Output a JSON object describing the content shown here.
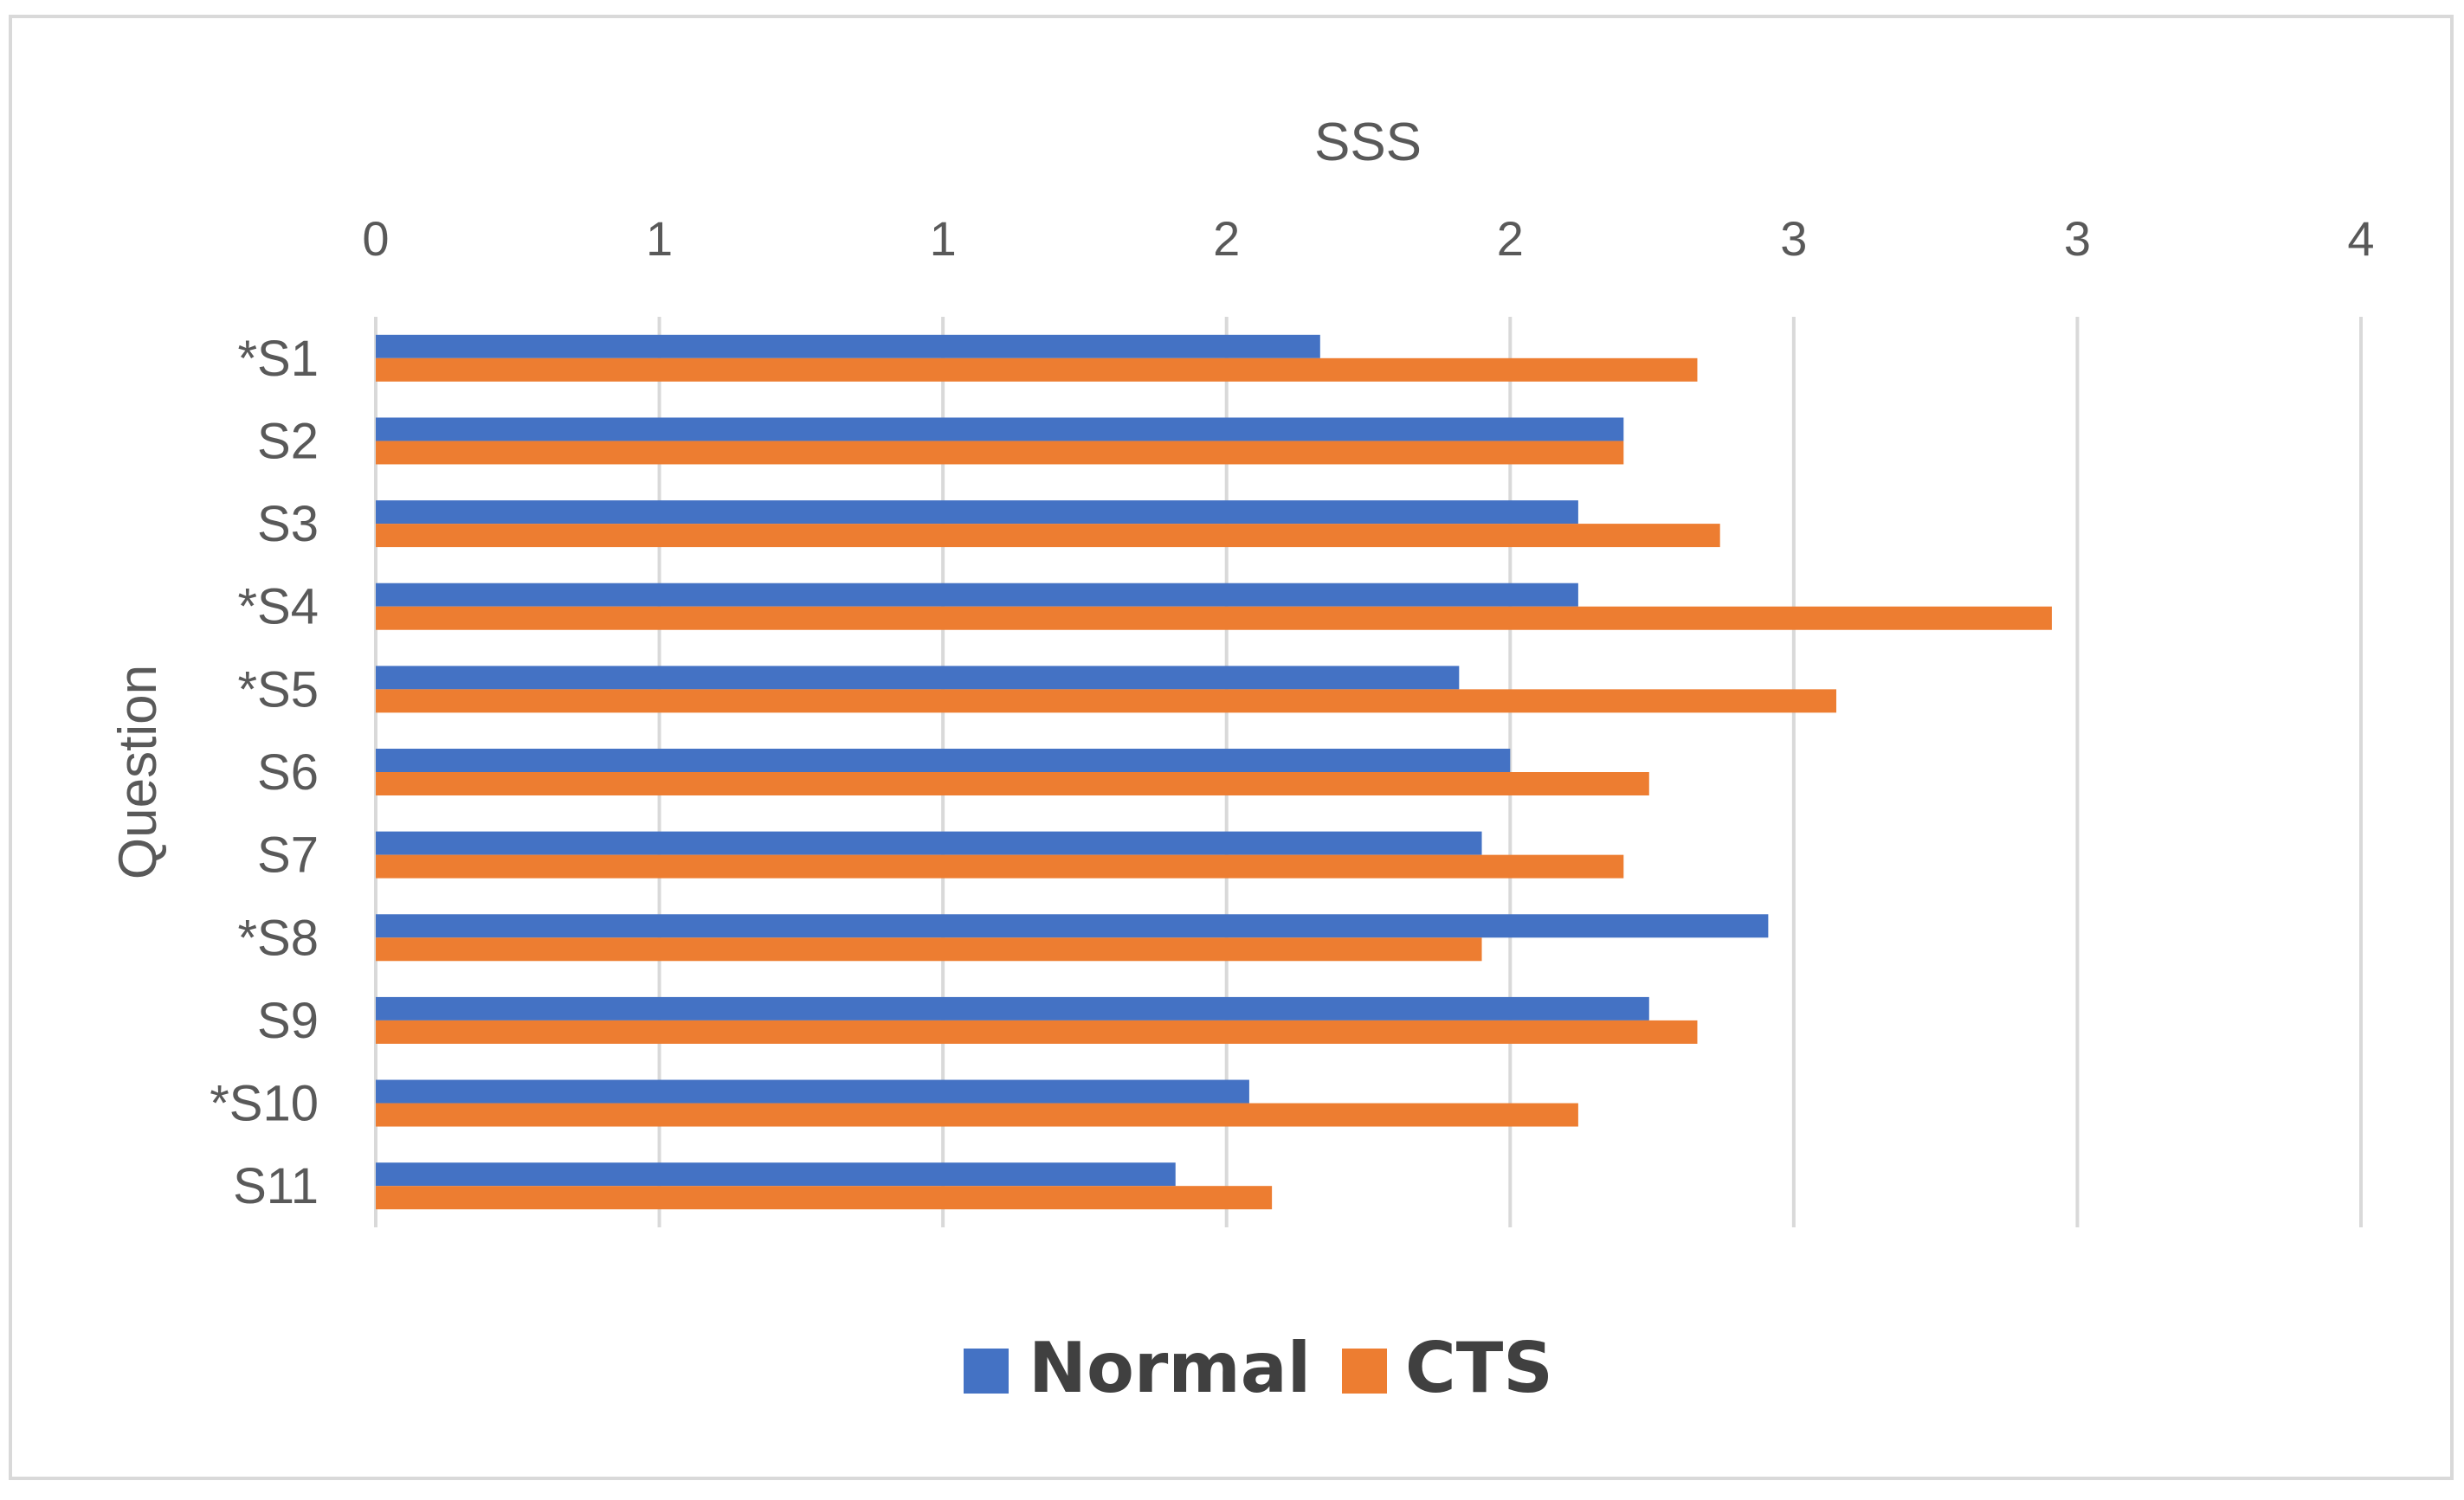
{
  "chart_data": {
    "type": "bar",
    "orientation": "horizontal",
    "title": "",
    "xlabel": "SSS",
    "ylabel": "Question",
    "x_axis_position": "top",
    "xlim": [
      0,
      3.5
    ],
    "x_tick_values": [
      0,
      0.5,
      1,
      1.5,
      2,
      2.5,
      3,
      3.5
    ],
    "x_tick_labels": [
      "0",
      "1",
      "1",
      "2",
      "2",
      "3",
      "3",
      "4"
    ],
    "grid": true,
    "legend_position": "bottom",
    "categories": [
      "*S1",
      "S2",
      "S3",
      "*S4",
      "*S5",
      "S6",
      "S7",
      "*S8",
      "S9",
      "*S10",
      "S11"
    ],
    "series": [
      {
        "name": "Normal",
        "color": "#4472c4",
        "values": [
          1.665,
          2.2,
          2.12,
          2.12,
          1.91,
          2.0,
          1.95,
          2.455,
          2.245,
          1.54,
          1.41
        ]
      },
      {
        "name": "CTS",
        "color": "#ed7d31",
        "values": [
          2.33,
          2.2,
          2.37,
          2.955,
          2.575,
          2.245,
          2.2,
          1.95,
          2.33,
          2.12,
          1.58
        ]
      }
    ]
  }
}
